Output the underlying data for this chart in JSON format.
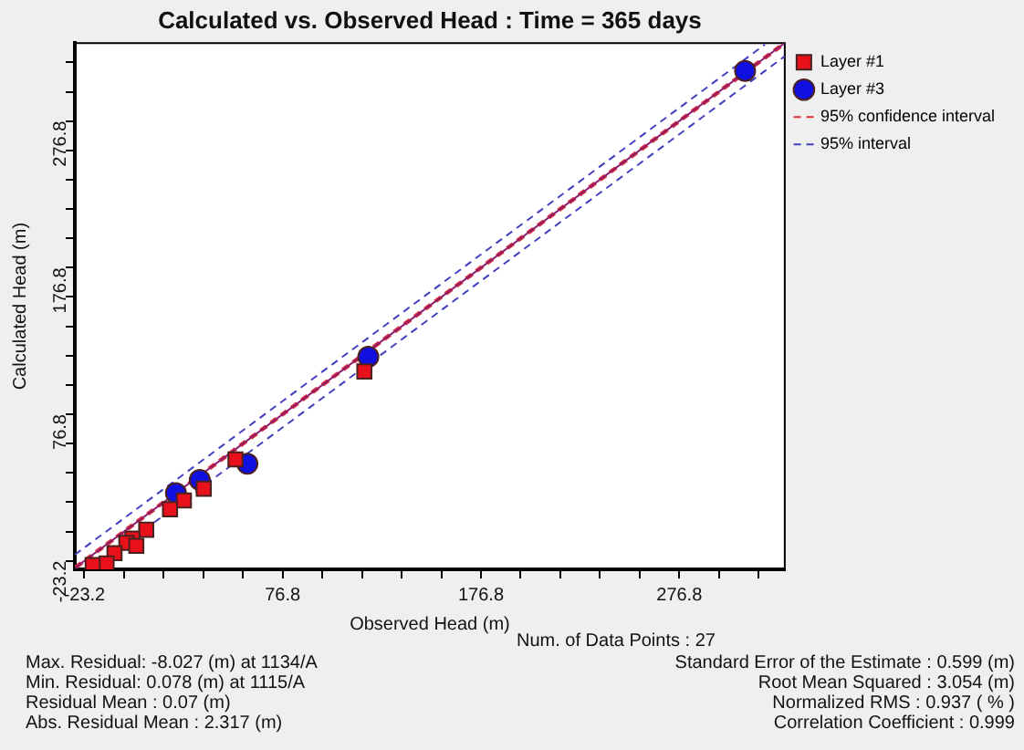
{
  "chart_data": {
    "type": "scatter",
    "title": "Calculated vs. Observed Head : Time = 365 days",
    "xlabel": "Observed Head (m)",
    "ylabel": "Calculated Head (m)",
    "xlim": [
      -28,
      330
    ],
    "ylim": [
      -29,
      330
    ],
    "xticks": [
      -23.2,
      {
        "value": -3.2,
        "label": null
      },
      {
        "value": 16.8,
        "label": null
      },
      {
        "value": 36.8,
        "label": null
      },
      {
        "value": 56.8,
        "label": null
      },
      76.8,
      {
        "value": 96.8,
        "label": null
      },
      {
        "value": 116.8,
        "label": null
      },
      {
        "value": 136.8,
        "label": null
      },
      {
        "value": 156.8,
        "label": null
      },
      176.8,
      {
        "value": 196.8,
        "label": null
      },
      {
        "value": 216.8,
        "label": null
      },
      {
        "value": 236.8,
        "label": null
      },
      {
        "value": 256.8,
        "label": null
      },
      276.8,
      {
        "value": 296.8,
        "label": null
      },
      {
        "value": 316.8,
        "label": null
      }
    ],
    "yticks": [
      -23.2,
      {
        "value": -3.2,
        "label": null
      },
      {
        "value": 16.8,
        "label": null
      },
      {
        "value": 36.8,
        "label": null
      },
      {
        "value": 56.8,
        "label": null
      },
      76.8,
      {
        "value": 96.8,
        "label": null
      },
      {
        "value": 116.8,
        "label": null
      },
      {
        "value": 136.8,
        "label": null
      },
      {
        "value": 156.8,
        "label": null
      },
      176.8,
      {
        "value": 196.8,
        "label": null
      },
      {
        "value": 216.8,
        "label": null
      },
      {
        "value": 236.8,
        "label": null
      },
      {
        "value": 256.8,
        "label": null
      },
      276.8,
      {
        "value": 296.8,
        "label": null
      },
      {
        "value": 316.8,
        "label": null
      }
    ],
    "grid": false,
    "legend": "top right",
    "series": [
      {
        "type": "scatter",
        "name": "Layer #1",
        "color": "#e8101a",
        "marker": "square",
        "x": [
          118,
          53,
          37,
          27,
          20,
          8,
          1,
          -2,
          3,
          -8,
          -12,
          -19
        ],
        "values": [
          106,
          46,
          26,
          18,
          12,
          -2,
          -8,
          -11,
          -13,
          -18,
          -25,
          -26
        ]
      },
      {
        "type": "scatter",
        "name": "Layer #3",
        "color": "#1010e0",
        "marker": "circle",
        "x": [
          310,
          120,
          59,
          35,
          23
        ],
        "values": [
          311,
          116,
          43,
          32,
          23
        ]
      },
      {
        "type": "line",
        "color": "#8b1a6b",
        "marker": "none",
        "line_style": "solid",
        "x": [
          -28,
          330
        ],
        "values": [
          -28,
          330
        ]
      },
      {
        "type": "line",
        "name": "95% confidence interval",
        "color": "#e0303a",
        "marker": "none",
        "line_style": "dashed",
        "x": [
          -28,
          329
        ],
        "values": [
          -27,
          330
        ]
      },
      {
        "type": "line",
        "color": "#e0303a",
        "marker": "none",
        "line_style": "dashed",
        "x": [
          -27,
          330
        ],
        "values": [
          -28,
          329
        ]
      },
      {
        "type": "line",
        "name": "95% interval",
        "color": "#4040c0",
        "marker": "none",
        "line_style": "dashed",
        "x": [
          -28,
          320
        ],
        "values": [
          -19,
          329
        ]
      },
      {
        "type": "line",
        "color": "#4040c0",
        "marker": "none",
        "line_style": "dashed",
        "x": [
          -19,
          330
        ],
        "values": [
          -28,
          321
        ]
      }
    ],
    "annotations": [
      "Num. of Data Points : 27",
      "Max. Residual: -8.027 (m) at 1134/A",
      "Min. Residual: 0.078 (m) at 1115/A",
      "Residual Mean : 0.07 (m)",
      "Abs. Residual Mean : 2.317 (m)",
      "Standard Error of the Estimate : 0.599 (m)",
      "Root Mean Squared : 3.054 (m)",
      "Normalized RMS : 0.937 ( % )",
      "Correlation Coefficient : 0.999"
    ]
  }
}
